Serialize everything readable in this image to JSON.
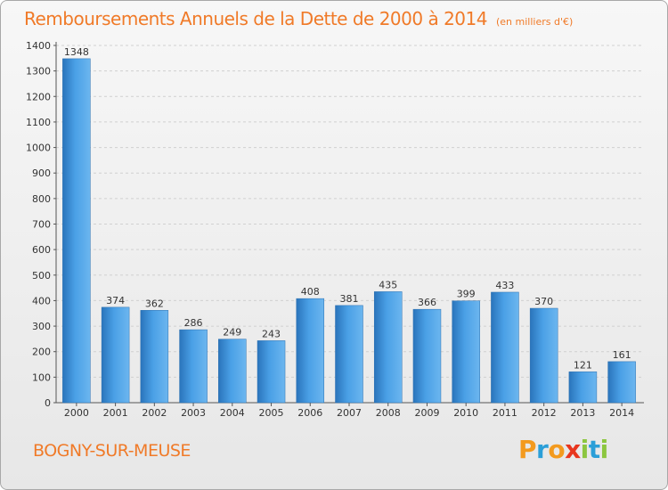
{
  "chart_data": {
    "type": "bar",
    "title": "Remboursements Annuels de la Dette de 2000 à 2014",
    "subtitle": "(en milliers d'€)",
    "categories": [
      "2000",
      "2001",
      "2002",
      "2003",
      "2004",
      "2005",
      "2006",
      "2007",
      "2008",
      "2009",
      "2010",
      "2011",
      "2012",
      "2013",
      "2014"
    ],
    "values": [
      1348,
      374,
      362,
      286,
      249,
      243,
      408,
      381,
      435,
      366,
      399,
      433,
      370,
      121,
      161
    ],
    "ylim": [
      0,
      1400
    ],
    "yticks": [
      0,
      100,
      200,
      300,
      400,
      500,
      600,
      700,
      800,
      900,
      1000,
      1100,
      1200,
      1300,
      1400
    ],
    "xlabel": "",
    "ylabel": "",
    "grid": "horizontal",
    "bar_color": "#3a8fd6"
  },
  "footer": {
    "commune": "BOGNY-SUR-MEUSE",
    "logo_letters": [
      "P",
      "r",
      "o",
      "x",
      "i",
      "t",
      "i"
    ],
    "logo_colors": [
      "#f39a1e",
      "#2b9fd8",
      "#f39a1e",
      "#e8361e",
      "#8cc63f",
      "#2b9fd8",
      "#8cc63f"
    ]
  }
}
